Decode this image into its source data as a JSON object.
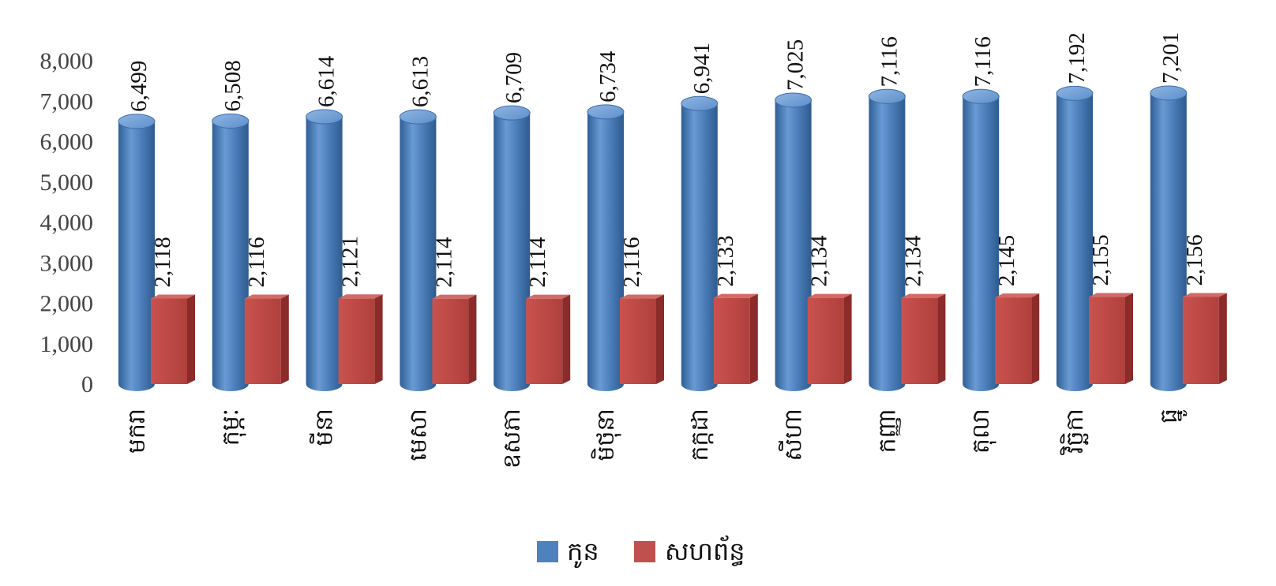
{
  "chart_data": {
    "type": "bar",
    "title": "",
    "xlabel": "",
    "ylabel": "",
    "ylim": [
      0,
      8000
    ],
    "yticks": [
      0,
      1000,
      2000,
      3000,
      4000,
      5000,
      6000,
      7000,
      8000
    ],
    "ytick_labels": [
      "0",
      "1,000",
      "2,000",
      "3,000",
      "4,000",
      "5,000",
      "6,000",
      "7,000",
      "8,000"
    ],
    "grid": false,
    "legend_position": "bottom",
    "categories": [
      "មករា",
      "កុម្ភៈ",
      "មីនា",
      "មេសា",
      "ឧសភា",
      "មិថុនា",
      "កក្កដា",
      "សីហា",
      "កញ្ញា",
      "តុលា",
      "វិច្ឆិកា",
      "ធ្នូ"
    ],
    "series": [
      {
        "name": "កូន",
        "color": "#4f81bd",
        "shape": "cylinder",
        "values": [
          6499,
          6508,
          6614,
          6613,
          6709,
          6734,
          6941,
          7025,
          7116,
          7116,
          7192,
          7201
        ],
        "value_labels": [
          "6,499",
          "6,508",
          "6,614",
          "6,613",
          "6,709",
          "6,734",
          "6,941",
          "7,025",
          "7,116",
          "7,116",
          "7,192",
          "7,201"
        ]
      },
      {
        "name": "សហព័ន្ធ",
        "color": "#c0504d",
        "shape": "box",
        "values": [
          2118,
          2116,
          2121,
          2114,
          2114,
          2116,
          2133,
          2134,
          2134,
          2145,
          2155,
          2156
        ],
        "value_labels": [
          "2,118",
          "2,116",
          "2,121",
          "2,114",
          "2,114",
          "2,116",
          "2,133",
          "2,134",
          "2,134",
          "2,145",
          "2,155",
          "2,156"
        ]
      }
    ]
  }
}
